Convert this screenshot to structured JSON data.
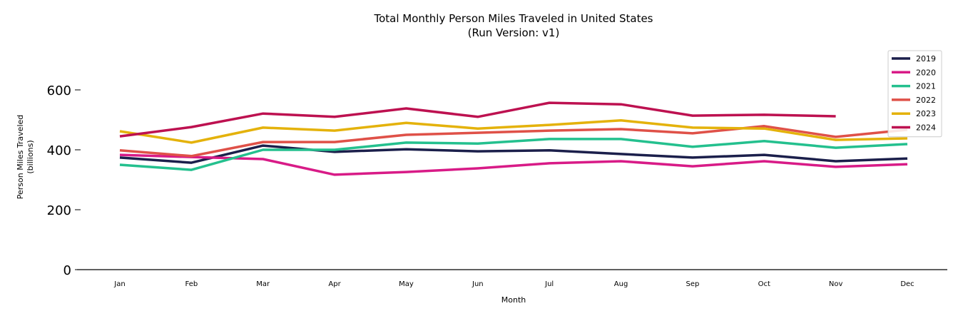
{
  "chart_data": {
    "type": "line",
    "title": "Total Monthly Person Miles Traveled in United States",
    "subtitle": "(Run Version: v1)",
    "xlabel": "Month",
    "ylabel": "Person Miles Traveled",
    "ylabel_unit": "(billions)",
    "categories": [
      "Jan",
      "Feb",
      "Mar",
      "Apr",
      "May",
      "Jun",
      "Jul",
      "Aug",
      "Sep",
      "Oct",
      "Nov",
      "Dec"
    ],
    "ylim": [
      0,
      720
    ],
    "yticks": [
      0,
      200,
      400,
      600
    ],
    "grid": false,
    "legend_position": "top-right",
    "series": [
      {
        "name": "2019",
        "color": "#1b1f4b",
        "values": [
          374,
          357,
          414,
          393,
          402,
          395,
          398,
          386,
          374,
          383,
          362,
          371
        ]
      },
      {
        "name": "2020",
        "color": "#d81b87",
        "values": [
          383,
          376,
          369,
          317,
          326,
          338,
          355,
          362,
          345,
          362,
          343,
          352
        ]
      },
      {
        "name": "2021",
        "color": "#24c08e",
        "values": [
          350,
          333,
          400,
          400,
          424,
          421,
          436,
          436,
          410,
          429,
          407,
          419
        ]
      },
      {
        "name": "2022",
        "color": "#df5148",
        "values": [
          398,
          379,
          426,
          426,
          450,
          457,
          464,
          469,
          455,
          479,
          443,
          467
        ]
      },
      {
        "name": "2023",
        "color": "#e4b20b",
        "values": [
          462,
          424,
          474,
          464,
          490,
          471,
          483,
          498,
          474,
          471,
          433,
          438
        ]
      },
      {
        "name": "2024",
        "color": "#bd1150",
        "values": [
          445,
          476,
          521,
          510,
          538,
          510,
          557,
          552,
          514,
          517,
          512,
          null
        ]
      }
    ]
  }
}
